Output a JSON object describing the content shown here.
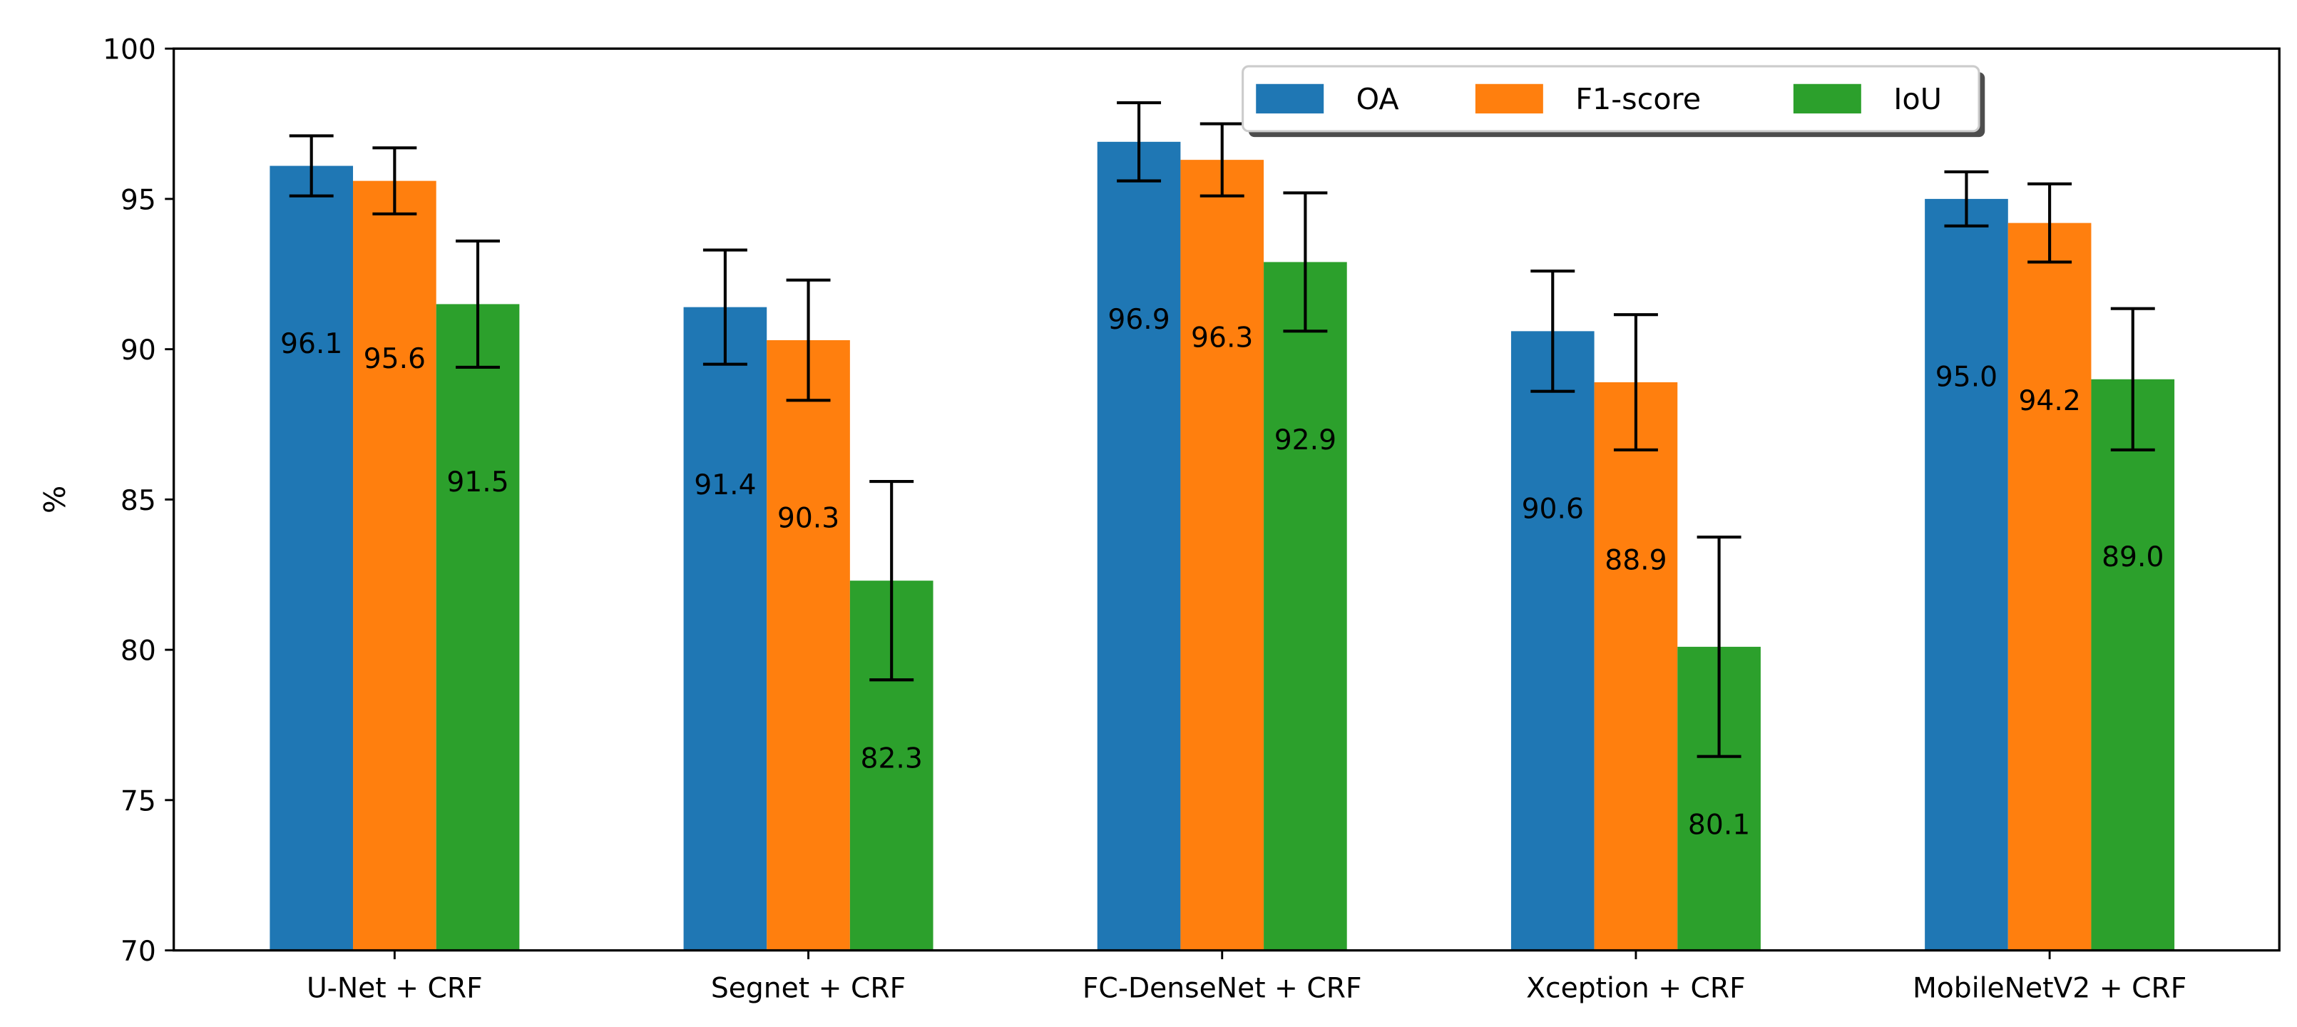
{
  "chart_data": {
    "type": "bar",
    "title": "",
    "xlabel": "",
    "ylabel": "%",
    "ylim": [
      70,
      100
    ],
    "yticks": [
      70,
      75,
      80,
      85,
      90,
      95,
      100
    ],
    "categories": [
      "U-Net + CRF",
      "Segnet + CRF",
      "FC-DenseNet + CRF",
      "Xception + CRF",
      "MobileNetV2 + CRF"
    ],
    "series": [
      {
        "name": "OA",
        "color": "#1f77b4",
        "values": [
          96.1,
          91.4,
          96.9,
          90.6,
          95.0
        ],
        "errors": [
          1.0,
          1.9,
          1.3,
          2.0,
          0.9
        ],
        "labels": [
          "96.1",
          "91.4",
          "96.9",
          "90.6",
          "95.0"
        ]
      },
      {
        "name": "F1-score",
        "color": "#ff7f0e",
        "values": [
          95.6,
          90.3,
          96.3,
          88.9,
          94.2
        ],
        "errors": [
          1.1,
          2.0,
          1.2,
          2.25,
          1.3
        ],
        "labels": [
          "95.6",
          "90.3",
          "96.3",
          "88.9",
          "94.2"
        ]
      },
      {
        "name": "IoU",
        "color": "#2ca02c",
        "values": [
          91.5,
          82.3,
          92.9,
          80.1,
          89.0
        ],
        "errors": [
          2.1,
          3.3,
          2.3,
          3.65,
          2.35
        ],
        "labels": [
          "91.5",
          "82.3",
          "92.9",
          "80.1",
          "89.0"
        ]
      }
    ],
    "grid": false,
    "legend_position": "top-center"
  }
}
